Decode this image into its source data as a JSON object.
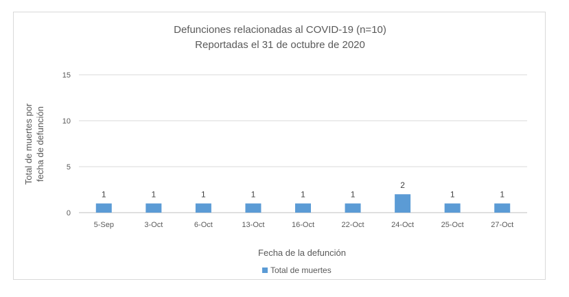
{
  "chart_data": {
    "type": "bar",
    "title": "Defunciones relacionadas al COVID-19 (n=10)",
    "subtitle": "Reportadas el 31 de octubre de 2020",
    "xlabel": "Fecha de la defunción",
    "ylabel_lines": [
      "Total de muertes  por",
      "fecha de defunción"
    ],
    "categories": [
      "5-Sep",
      "3-Oct",
      "6-Oct",
      "13-Oct",
      "16-Oct",
      "22-Oct",
      "24-Oct",
      "25-Oct",
      "27-Oct"
    ],
    "series": [
      {
        "name": "Total de muertes",
        "values": [
          1,
          1,
          1,
          1,
          1,
          1,
          2,
          1,
          1
        ],
        "color": "#5b9bd5"
      }
    ],
    "ylim": [
      0,
      15
    ],
    "yticks": [
      0,
      5,
      10,
      15
    ],
    "grid": true,
    "legend_position": "bottom"
  }
}
